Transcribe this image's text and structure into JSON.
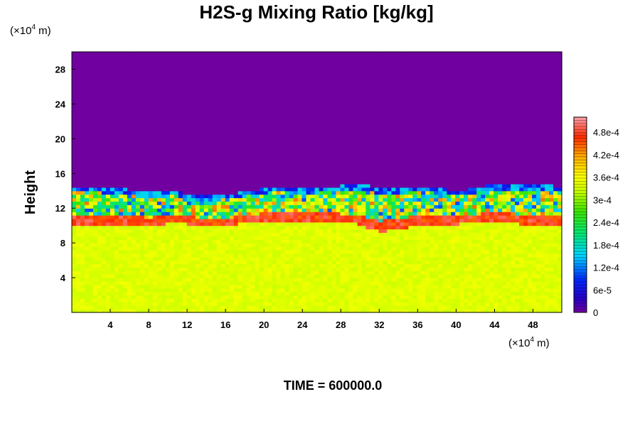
{
  "chart_data": {
    "type": "heatmap",
    "title": "H2S-g Mixing Ratio [kg/kg]",
    "ylabel": "Height",
    "x_unit_prefix": "(×10",
    "x_unit_exp": "4",
    "x_unit_suffix": " m)",
    "y_unit_prefix": "(×10",
    "y_unit_exp": "4",
    "y_unit_suffix": " m)",
    "xlim": [
      0,
      51
    ],
    "ylim": [
      0,
      30
    ],
    "x_ticks": [
      4,
      8,
      12,
      16,
      20,
      24,
      28,
      32,
      36,
      40,
      44,
      48
    ],
    "y_ticks": [
      4,
      8,
      12,
      16,
      20,
      24,
      28
    ],
    "colorbar": {
      "min": 0,
      "max": 0.00052,
      "tick_values": [
        0,
        6e-05,
        0.00012,
        0.00018,
        0.00024,
        0.0003,
        0.00036,
        0.00042,
        0.00048
      ],
      "tick_labels": [
        "0",
        "6e-5",
        "1.2e-4",
        "1.8e-4",
        "2.4e-4",
        "3e-4",
        "3.6e-4",
        "4.2e-4",
        "4.8e-4"
      ]
    },
    "fields": {
      "background_value": 0.00034,
      "upper_value": 0.0,
      "transition_height": [
        14.5,
        14.5,
        14.3,
        13.8,
        14.0,
        13.4,
        13.6,
        14.1,
        14.6,
        14.2,
        14.5,
        14.8,
        14.4,
        14.6,
        14.5,
        14.0,
        14.6,
        14.7,
        14.8,
        14.5
      ],
      "lower_boundary_height": [
        10.0,
        9.9,
        10.2,
        10.0,
        10.3,
        10.1,
        10.0,
        10.4,
        10.6,
        10.5,
        10.4,
        10.2,
        9.3,
        9.8,
        10.0,
        10.2,
        10.4,
        10.3,
        10.0,
        9.9
      ]
    },
    "time_label": "TIME = 600000.0"
  }
}
